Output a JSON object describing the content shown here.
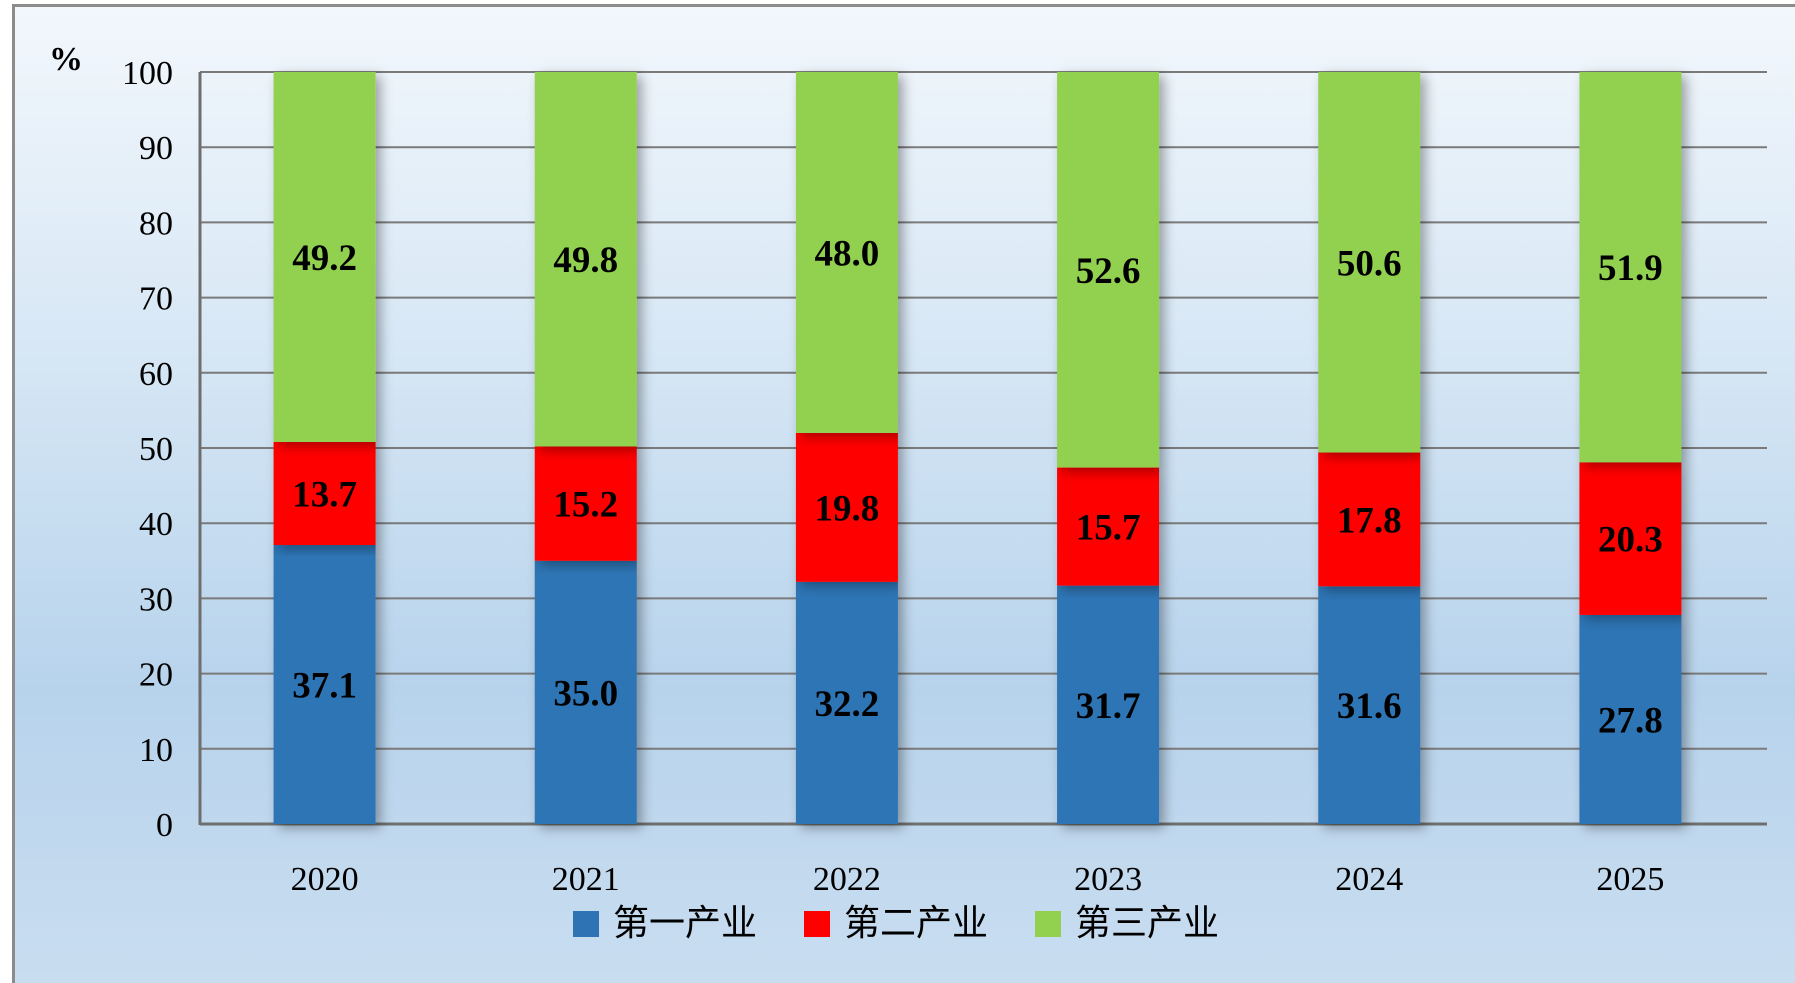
{
  "chart_data": {
    "type": "bar",
    "stacked": true,
    "unit": "%",
    "categories": [
      "2020",
      "2021",
      "2022",
      "2023",
      "2024",
      "2025"
    ],
    "series": [
      {
        "name": "第一产业",
        "color": "#2e74b5",
        "values": [
          37.1,
          35.0,
          32.2,
          31.7,
          31.6,
          27.8
        ]
      },
      {
        "name": "第二产业",
        "color": "#ff0000",
        "values": [
          13.7,
          15.2,
          19.8,
          15.7,
          17.8,
          20.3
        ]
      },
      {
        "name": "第三产业",
        "color": "#92d050",
        "values": [
          49.2,
          49.8,
          48.0,
          52.6,
          50.6,
          51.9
        ]
      }
    ],
    "value_labels": [
      [
        "37.1",
        "35.0",
        "32.2",
        "31.7",
        "31.6",
        "27.8"
      ],
      [
        "13.7",
        "15.2",
        "19.8",
        "15.7",
        "17.8",
        "20.3"
      ],
      [
        "49.2",
        "49.8",
        "48.0",
        "52.6",
        "50.6",
        "51.9"
      ]
    ],
    "ylim": [
      0,
      100
    ],
    "yticks": [
      0,
      10,
      20,
      30,
      40,
      50,
      60,
      70,
      80,
      90,
      100
    ],
    "ytick_labels": [
      "0",
      "10",
      "20",
      "30",
      "40",
      "50",
      "60",
      "70",
      "80",
      "90",
      "100"
    ],
    "grid": true,
    "legend": "bottom-center",
    "xlabel": "",
    "ylabel": ""
  }
}
